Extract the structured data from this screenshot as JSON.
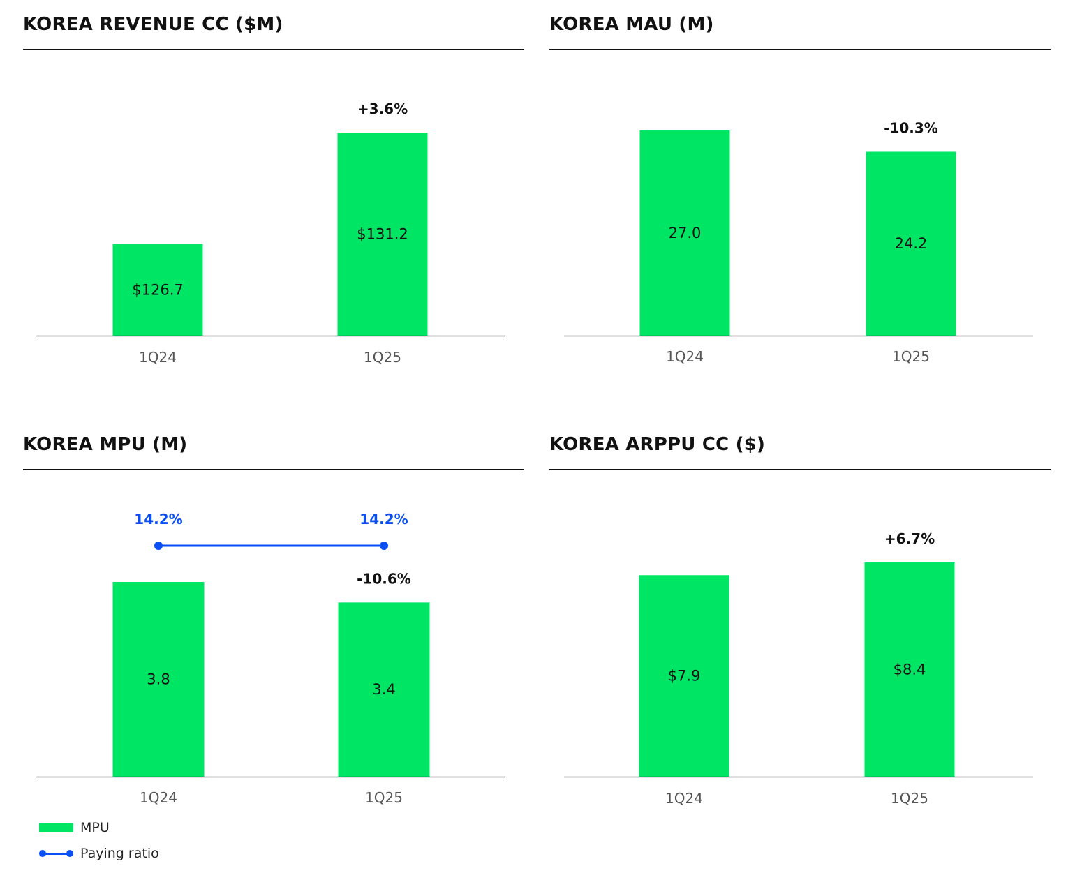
{
  "colors": {
    "bar": "#00e564",
    "ratio": "#0a4ef5",
    "axis": "#111111",
    "tick": "#555555"
  },
  "legend": {
    "items": [
      {
        "label": "MPU",
        "kind": "bar",
        "color": "#00e564"
      },
      {
        "label": "Paying ratio",
        "kind": "line",
        "color": "#0a4ef5"
      }
    ]
  },
  "chart_data": [
    {
      "type": "bar",
      "title": "KOREA REVENUE CC ($M)",
      "categories": [
        "1Q24",
        "1Q25"
      ],
      "values": [
        126.7,
        131.2
      ],
      "value_labels": [
        "$126.7",
        "$131.2"
      ],
      "change_label": "+3.6%",
      "ylim": [
        123,
        131.2
      ],
      "grid": false
    },
    {
      "type": "bar",
      "title": "KOREA MAU (M)",
      "categories": [
        "1Q24",
        "1Q25"
      ],
      "values": [
        27.0,
        24.2
      ],
      "value_labels": [
        "27.0",
        "24.2"
      ],
      "change_label": "-10.3%",
      "ylim": [
        0,
        27.0
      ],
      "grid": false
    },
    {
      "type": "bar",
      "title": "KOREA MPU (M)",
      "categories": [
        "1Q24",
        "1Q25"
      ],
      "values": [
        3.8,
        3.4
      ],
      "value_labels": [
        "3.8",
        "3.4"
      ],
      "change_label": "-10.6%",
      "ylim": [
        0,
        3.8
      ],
      "grid": false,
      "legend": "bottom-left",
      "line_series": {
        "name": "Paying ratio",
        "values": [
          14.2,
          14.2
        ],
        "value_labels": [
          "14.2%",
          "14.2%"
        ]
      }
    },
    {
      "type": "bar",
      "title": "KOREA ARPPU CC ($)",
      "categories": [
        "1Q24",
        "1Q25"
      ],
      "values": [
        7.9,
        8.4
      ],
      "value_labels": [
        "$7.9",
        "$8.4"
      ],
      "change_label": "+6.7%",
      "ylim": [
        0,
        8.4
      ],
      "grid": false
    }
  ]
}
